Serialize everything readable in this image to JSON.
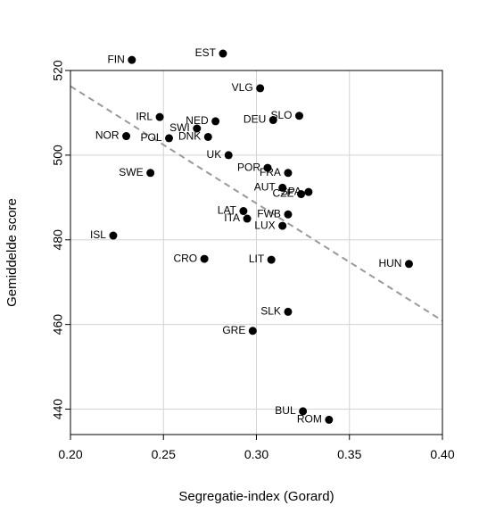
{
  "chart_data": {
    "type": "scatter",
    "title": "",
    "xlabel": "Segregatie-index (Gorard)",
    "ylabel": "Gemiddelde score",
    "xlim": [
      0.2,
      0.4
    ],
    "ylim": [
      434,
      520
    ],
    "x_ticks": [
      "0.20",
      "0.25",
      "0.30",
      "0.35",
      "0.40"
    ],
    "y_ticks": [
      "440",
      "460",
      "480",
      "500",
      "520"
    ],
    "grid": true,
    "points": [
      {
        "label": "FIN",
        "x": 0.233,
        "y": 522.5
      },
      {
        "label": "EST",
        "x": 0.282,
        "y": 524.0
      },
      {
        "label": "VLG",
        "x": 0.302,
        "y": 515.8
      },
      {
        "label": "IRL",
        "x": 0.248,
        "y": 509.0
      },
      {
        "label": "SLO",
        "x": 0.323,
        "y": 509.3
      },
      {
        "label": "NED",
        "x": 0.278,
        "y": 508.0
      },
      {
        "label": "DEU",
        "x": 0.309,
        "y": 508.3
      },
      {
        "label": "SWI",
        "x": 0.268,
        "y": 506.3
      },
      {
        "label": "NOR",
        "x": 0.23,
        "y": 504.5
      },
      {
        "label": "POL",
        "x": 0.253,
        "y": 504.0
      },
      {
        "label": "DNK",
        "x": 0.274,
        "y": 504.3
      },
      {
        "label": "UK",
        "x": 0.285,
        "y": 500.0
      },
      {
        "label": "SWE",
        "x": 0.243,
        "y": 495.8
      },
      {
        "label": "POR",
        "x": 0.306,
        "y": 497.0
      },
      {
        "label": "FRA",
        "x": 0.317,
        "y": 495.8
      },
      {
        "label": "AUT",
        "x": 0.314,
        "y": 492.3
      },
      {
        "label": "CZE",
        "x": 0.324,
        "y": 490.8
      },
      {
        "label": "SPA",
        "x": 0.328,
        "y": 491.3
      },
      {
        "label": "LAT",
        "x": 0.293,
        "y": 486.8
      },
      {
        "label": "ITA",
        "x": 0.295,
        "y": 485.0
      },
      {
        "label": "FWB",
        "x": 0.317,
        "y": 486.0
      },
      {
        "label": "LUX",
        "x": 0.314,
        "y": 483.3
      },
      {
        "label": "ISL",
        "x": 0.223,
        "y": 481.0
      },
      {
        "label": "CRO",
        "x": 0.272,
        "y": 475.5
      },
      {
        "label": "LIT",
        "x": 0.308,
        "y": 475.3
      },
      {
        "label": "HUN",
        "x": 0.382,
        "y": 474.3
      },
      {
        "label": "SLK",
        "x": 0.317,
        "y": 463.0
      },
      {
        "label": "GRE",
        "x": 0.298,
        "y": 458.5
      },
      {
        "label": "BUL",
        "x": 0.325,
        "y": 439.5
      },
      {
        "label": "ROM",
        "x": 0.339,
        "y": 437.5
      }
    ],
    "trendline": {
      "x": [
        0.2,
        0.4
      ],
      "y": [
        516.3,
        460.9
      ],
      "style": "dashed",
      "color": "#999999"
    },
    "point_color": "#000000"
  }
}
